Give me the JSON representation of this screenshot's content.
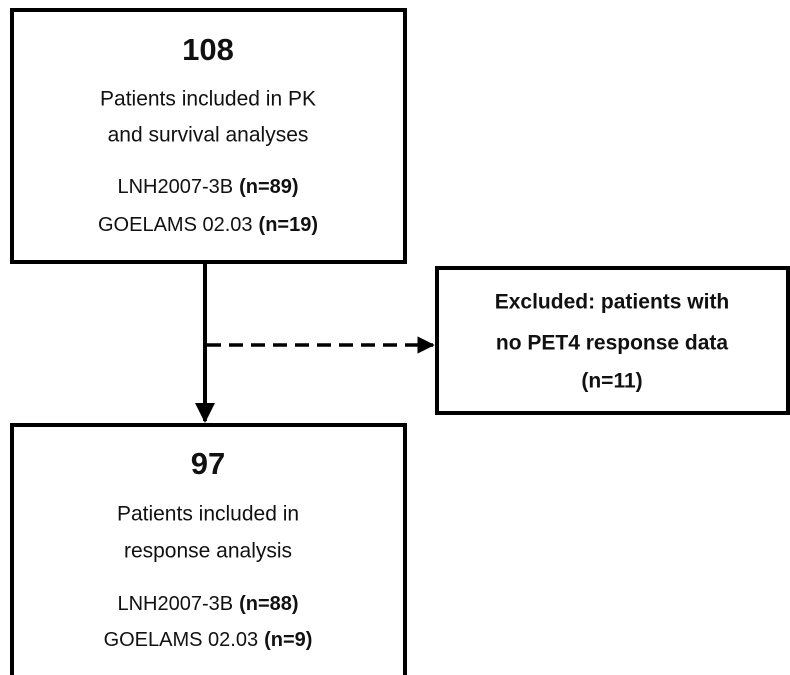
{
  "nodes": [
    {
      "count": "108",
      "label_lines": [
        "Patients included in PK",
        "and survival analyses"
      ],
      "groups": [
        {
          "name": "LNH2007-3B",
          "n": "(n=89)"
        },
        {
          "name": "GOELAMS 02.03",
          "n": "(n=19)"
        }
      ]
    },
    {
      "count": "97",
      "label_lines": [
        "Patients included in",
        "response analysis"
      ],
      "groups": [
        {
          "name": "LNH2007-3B",
          "n": "(n=88)"
        },
        {
          "name": "GOELAMS 02.03",
          "n": "(n=9)"
        }
      ]
    }
  ],
  "exclusion": {
    "lines": [
      "Excluded: patients with",
      "no PET4 response data",
      "(n=11)"
    ]
  }
}
